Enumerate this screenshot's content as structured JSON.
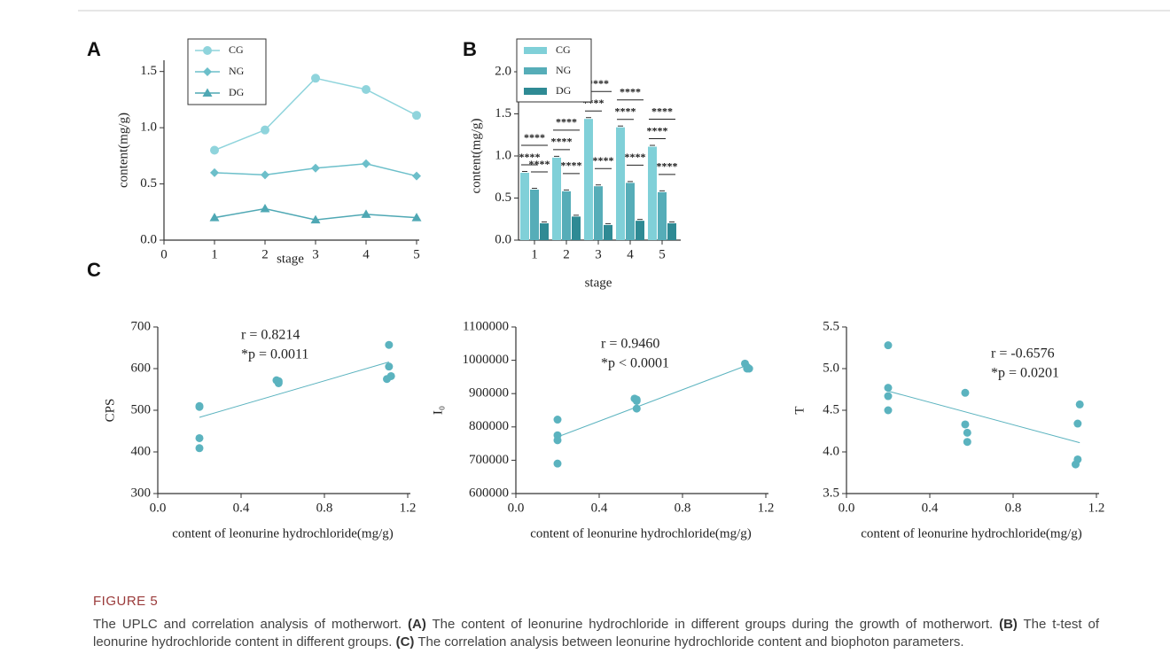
{
  "panel_labels": [
    "A",
    "B",
    "C"
  ],
  "chart_data": [
    {
      "type": "line",
      "xlabel": "stage",
      "ylabel": "content(mg/g)",
      "x": [
        1,
        2,
        3,
        4,
        5
      ],
      "xlim": [
        0,
        5
      ],
      "xticks": [
        0,
        1,
        2,
        3,
        4,
        5
      ],
      "ylim": [
        0,
        1.6
      ],
      "yticks": [
        {
          "value": 0,
          "label": "0.0"
        },
        {
          "value": 0.5,
          "label": "0.5"
        },
        {
          "value": 1,
          "label": "1.0"
        },
        {
          "value": 1.5,
          "label": "1.5"
        }
      ],
      "legend": "upper left",
      "series": [
        {
          "name": "CG",
          "color": "#8fd4dc",
          "marker": "circle",
          "values": [
            0.8,
            0.98,
            1.44,
            1.34,
            1.11
          ]
        },
        {
          "name": "NG",
          "color": "#6cbfca",
          "marker": "diamond",
          "values": [
            0.6,
            0.58,
            0.64,
            0.68,
            0.57
          ]
        },
        {
          "name": "DG",
          "color": "#4fa8b4",
          "marker": "triangle",
          "values": [
            0.2,
            0.28,
            0.18,
            0.23,
            0.2
          ]
        }
      ]
    },
    {
      "type": "bar",
      "xlabel": "stage",
      "ylabel": "content(mg/g)",
      "categories": [
        "1",
        "2",
        "3",
        "4",
        "5"
      ],
      "ylim": [
        0,
        2
      ],
      "yticks": [
        {
          "value": 0,
          "label": "0.0"
        },
        {
          "value": 0.5,
          "label": "0.5"
        },
        {
          "value": 1,
          "label": "1.0"
        },
        {
          "value": 1.5,
          "label": "1.5"
        },
        {
          "value": 2,
          "label": "2.0"
        }
      ],
      "legend": "upper left",
      "series": [
        {
          "name": "CG",
          "color": "#80d0d8",
          "values": [
            0.8,
            0.98,
            1.44,
            1.34,
            1.11
          ]
        },
        {
          "name": "NG",
          "color": "#56adb8",
          "values": [
            0.6,
            0.58,
            0.64,
            0.68,
            0.57
          ]
        },
        {
          "name": "DG",
          "color": "#2f8a94",
          "values": [
            0.2,
            0.28,
            0.18,
            0.23,
            0.2
          ]
        }
      ],
      "annotations": [
        [
          "****",
          "****",
          "****"
        ],
        [
          "****",
          "****",
          "****"
        ],
        [
          "****",
          "****",
          "****"
        ],
        [
          "****",
          "****",
          "****"
        ],
        [
          "****",
          "****",
          "****"
        ]
      ]
    },
    {
      "type": "scatter",
      "xlabel": "content of leonurine hydrochloride(mg/g)",
      "ylabel": "CPS",
      "color": "#5bb3bf",
      "xlim": [
        0,
        1.2
      ],
      "xticks": [
        {
          "value": 0,
          "label": "0.0"
        },
        {
          "value": 0.4,
          "label": "0.4"
        },
        {
          "value": 0.8,
          "label": "0.8"
        },
        {
          "value": 1.2,
          "label": "1.2"
        }
      ],
      "ylim": [
        300,
        700
      ],
      "yticks": [
        300,
        400,
        500,
        600,
        700
      ],
      "x": [
        0.2,
        0.2,
        0.2,
        0.2,
        0.57,
        0.58,
        0.58,
        0.58,
        1.11,
        1.11,
        1.12,
        1.1
      ],
      "values": [
        510,
        508,
        433,
        409,
        572,
        570,
        567,
        565,
        657,
        605,
        582,
        575
      ],
      "fit_x": [
        0.2,
        1.11
      ],
      "fit_y": [
        483,
        616
      ],
      "annotations": [
        "r = 0.8214",
        "*p = 0.0011"
      ]
    },
    {
      "type": "scatter",
      "xlabel": "content of leonurine hydrochloride(mg/g)",
      "ylabel": "I₀",
      "color": "#5bb3bf",
      "xlim": [
        0,
        1.2
      ],
      "xticks": [
        {
          "value": 0,
          "label": "0.0"
        },
        {
          "value": 0.4,
          "label": "0.4"
        },
        {
          "value": 0.8,
          "label": "0.8"
        },
        {
          "value": 1.2,
          "label": "1.2"
        }
      ],
      "ylim": [
        600000,
        1100000
      ],
      "yticks": [
        600000,
        700000,
        800000,
        900000,
        1000000,
        1100000
      ],
      "x": [
        0.2,
        0.2,
        0.2,
        0.2,
        0.57,
        0.58,
        0.58,
        0.58,
        1.1,
        1.11,
        1.12,
        1.11
      ],
      "values": [
        822000,
        775000,
        760000,
        690000,
        885000,
        882000,
        878000,
        855000,
        990000,
        980000,
        975000,
        975000
      ],
      "fit_x": [
        0.2,
        1.11
      ],
      "fit_y": [
        770000,
        985000
      ],
      "annotations": [
        "r = 0.9460",
        "*p < 0.0001"
      ]
    },
    {
      "type": "scatter",
      "xlabel": "content of leonurine hydrochloride(mg/g)",
      "ylabel": "T",
      "color": "#5bb3bf",
      "xlim": [
        0,
        1.2
      ],
      "xticks": [
        {
          "value": 0,
          "label": "0.0"
        },
        {
          "value": 0.4,
          "label": "0.4"
        },
        {
          "value": 0.8,
          "label": "0.8"
        },
        {
          "value": 1.2,
          "label": "1.2"
        }
      ],
      "ylim": [
        3.5,
        5.5
      ],
      "yticks": [
        3.5,
        {
          "value": 4,
          "label": "4.0"
        },
        4.5,
        {
          "value": 5,
          "label": "5.0"
        },
        5.5
      ],
      "x": [
        0.2,
        0.2,
        0.2,
        0.2,
        0.57,
        0.57,
        0.58,
        0.58,
        1.12,
        1.11,
        1.11,
        1.1
      ],
      "values": [
        5.28,
        4.77,
        4.67,
        4.5,
        4.71,
        4.33,
        4.23,
        4.12,
        4.57,
        4.34,
        3.91,
        3.85
      ],
      "fit_x": [
        0.2,
        1.12
      ],
      "fit_y": [
        4.73,
        4.11
      ],
      "annotations": [
        "r = -0.6576",
        "*p = 0.0201"
      ]
    }
  ],
  "figure": {
    "label": "FIGURE 5",
    "caption": [
      {
        "text": "The UPLC and correlation analysis of motherwort. "
      },
      {
        "text": "(A)",
        "bold": true
      },
      {
        "text": " The content of leonurine hydrochloride in different groups during the growth of motherwort. "
      },
      {
        "text": "(B)",
        "bold": true
      },
      {
        "text": " The t-test of leonurine hydrochloride content in different groups. "
      },
      {
        "text": "(C)",
        "bold": true
      },
      {
        "text": " The correlation analysis between leonurine hydrochloride content and biophoton parameters."
      }
    ]
  }
}
